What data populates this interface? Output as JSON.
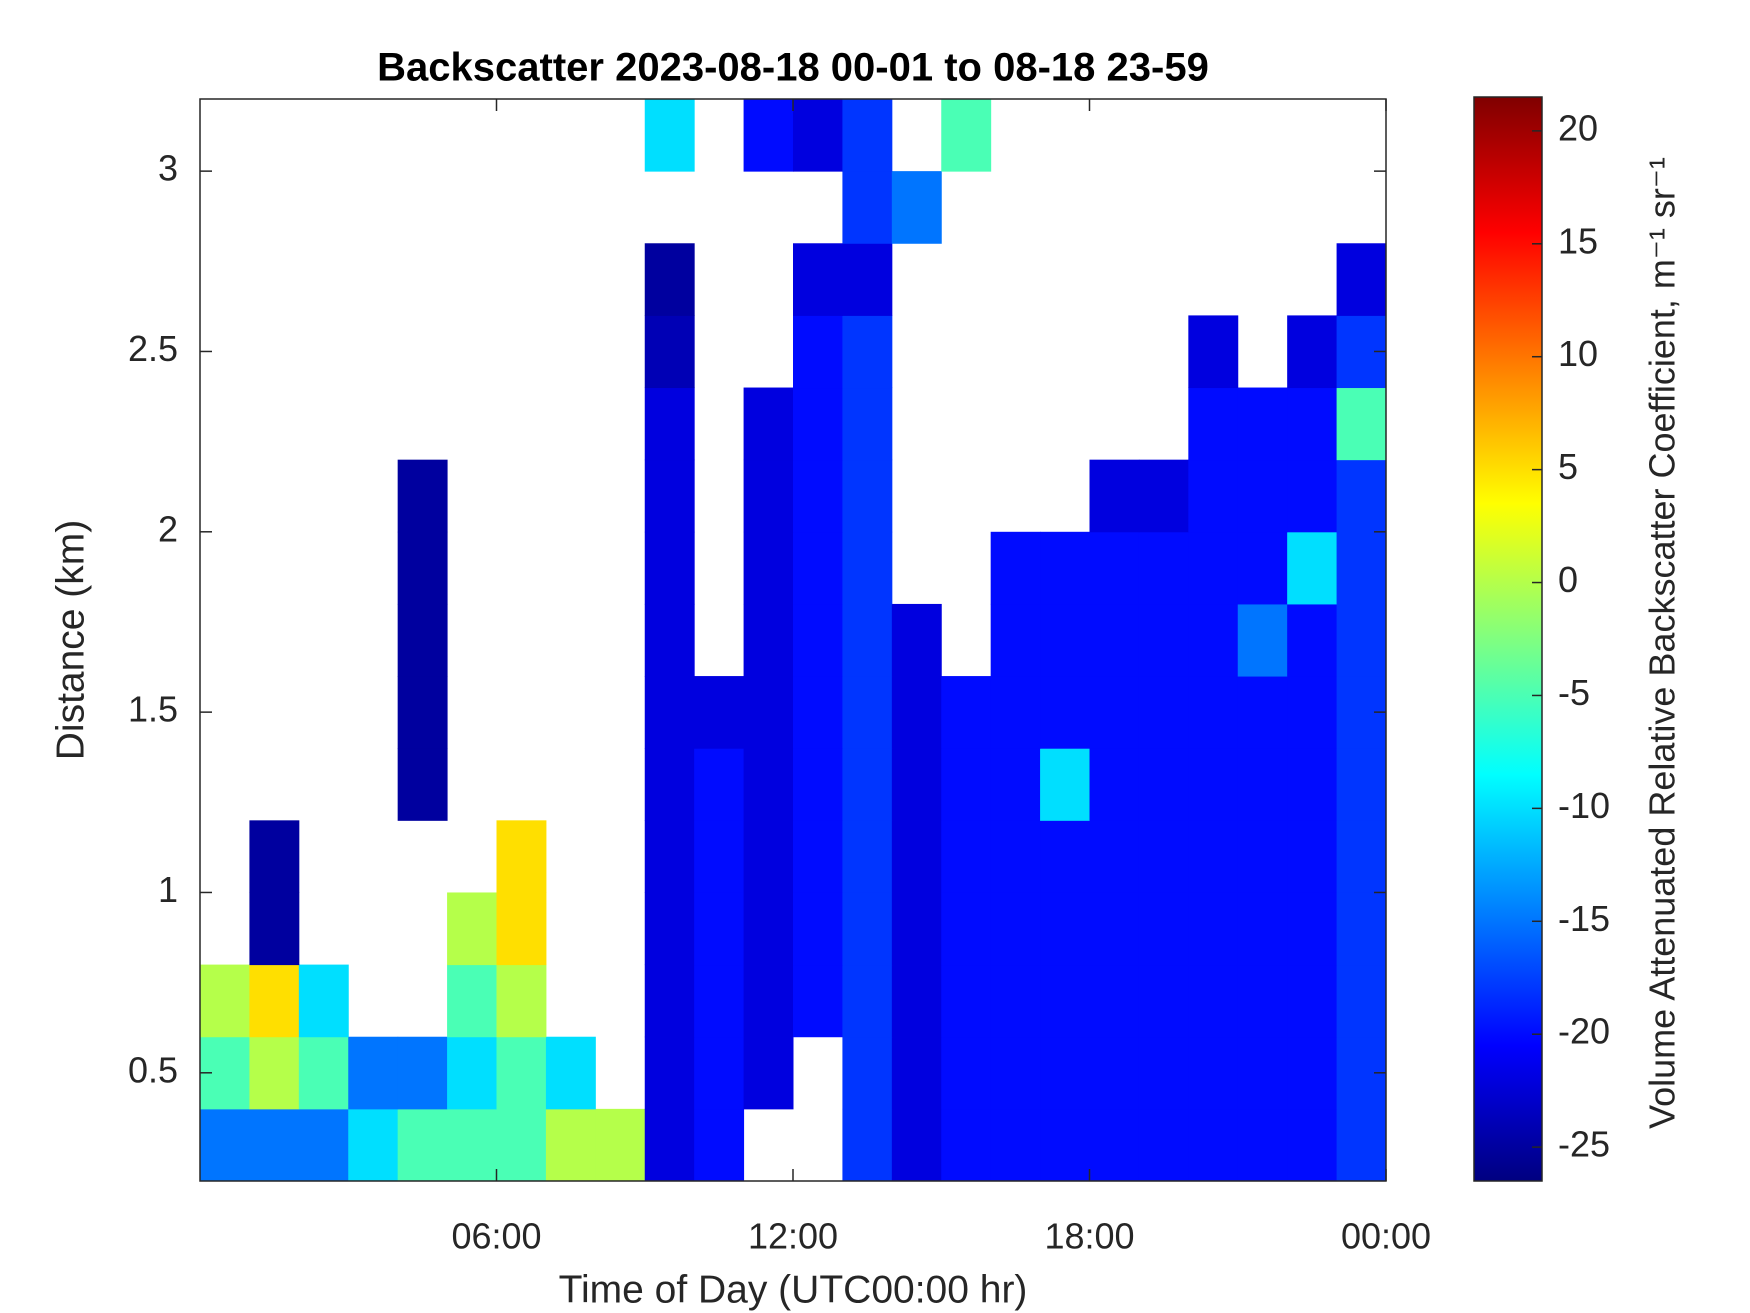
{
  "chart_data": {
    "type": "heatmap",
    "title": "Backscatter 2023-08-18 00-01 to 08-18 23-59",
    "x_label": "Time of Day (UTC00:00 hr)",
    "y_label": "Distance (km)",
    "colorbar_label": "Volume Attenuated Relative Backscatter Coefficient, m⁻¹ sr⁻¹",
    "colormap": "jet",
    "x": [
      0.5,
      1.5,
      2.5,
      3.5,
      4.5,
      5.5,
      6.5,
      7.5,
      8.5,
      9.5,
      10.5,
      11.5,
      12.5,
      13.5,
      14.5,
      15.5,
      16.5,
      17.5,
      18.5,
      19.5,
      20.5,
      21.5,
      22.5,
      23.5
    ],
    "y": [
      0.3,
      0.5,
      0.7,
      0.9,
      1.1,
      1.3,
      1.5,
      1.7,
      1.9,
      2.1,
      2.3,
      2.5,
      2.7,
      2.9,
      3.1
    ],
    "z": [
      [
        -15,
        -15,
        -15,
        -10,
        -5,
        -5,
        -5,
        0,
        0,
        -22,
        -20,
        null,
        null,
        -18,
        -22,
        -20,
        -20,
        -20,
        -20,
        -20,
        -20,
        -20,
        -20,
        -18
      ],
      [
        -5,
        0,
        -5,
        -15,
        -15,
        -10,
        -5,
        -10,
        null,
        -22,
        -20,
        -22,
        null,
        -18,
        -22,
        -20,
        -20,
        -20,
        -20,
        -20,
        -20,
        -20,
        -20,
        -18
      ],
      [
        0,
        5,
        -10,
        null,
        null,
        -5,
        0,
        null,
        null,
        -22,
        -20,
        -22,
        -20,
        -18,
        -22,
        -20,
        -20,
        -20,
        -20,
        -20,
        -20,
        -20,
        -20,
        -18
      ],
      [
        null,
        -25,
        null,
        null,
        null,
        0,
        5,
        null,
        null,
        -22,
        -20,
        -22,
        -20,
        -18,
        -22,
        -20,
        -20,
        -20,
        -20,
        -20,
        -20,
        -20,
        -20,
        -18
      ],
      [
        null,
        -25,
        null,
        null,
        null,
        null,
        5,
        null,
        null,
        -22,
        -20,
        -22,
        -20,
        -18,
        -22,
        -20,
        -20,
        -20,
        -20,
        -20,
        -20,
        -20,
        -20,
        -18
      ],
      [
        null,
        null,
        null,
        null,
        -25,
        null,
        null,
        null,
        null,
        -22,
        -20,
        -22,
        -20,
        -18,
        -22,
        -20,
        -20,
        -10,
        -20,
        -20,
        -20,
        -20,
        -20,
        -18
      ],
      [
        null,
        null,
        null,
        null,
        -25,
        null,
        null,
        null,
        null,
        -22,
        -22,
        -22,
        -20,
        -18,
        -22,
        -20,
        -20,
        -20,
        -20,
        -20,
        -20,
        -20,
        -20,
        -18
      ],
      [
        null,
        null,
        null,
        null,
        -25,
        null,
        null,
        null,
        null,
        -22,
        null,
        -22,
        -20,
        -18,
        -22,
        null,
        -20,
        -20,
        -20,
        -20,
        -20,
        -15,
        -20,
        -18
      ],
      [
        null,
        null,
        null,
        null,
        -25,
        null,
        null,
        null,
        null,
        -22,
        null,
        -22,
        -20,
        -18,
        null,
        null,
        -20,
        -20,
        -20,
        -20,
        -20,
        -20,
        -10,
        -18
      ],
      [
        null,
        null,
        null,
        null,
        -25,
        null,
        null,
        null,
        null,
        -22,
        null,
        -22,
        -20,
        -18,
        null,
        null,
        null,
        null,
        -22,
        -22,
        -20,
        -20,
        -20,
        -18
      ],
      [
        null,
        null,
        null,
        null,
        null,
        null,
        null,
        null,
        null,
        -22,
        null,
        -22,
        -20,
        -18,
        null,
        null,
        null,
        null,
        null,
        null,
        -20,
        -20,
        -20,
        -5
      ],
      [
        null,
        null,
        null,
        null,
        null,
        null,
        null,
        null,
        null,
        -24,
        null,
        null,
        -20,
        -18,
        null,
        null,
        null,
        null,
        null,
        null,
        -22,
        null,
        -22,
        -18
      ],
      [
        null,
        null,
        null,
        null,
        null,
        null,
        null,
        null,
        null,
        -25,
        null,
        null,
        -22,
        -22,
        null,
        null,
        null,
        null,
        null,
        null,
        null,
        null,
        null,
        -22
      ],
      [
        null,
        null,
        null,
        null,
        null,
        null,
        null,
        null,
        null,
        null,
        null,
        null,
        null,
        -18,
        -15,
        null,
        null,
        null,
        null,
        null,
        null,
        null,
        null,
        null
      ],
      [
        null,
        null,
        null,
        null,
        null,
        null,
        null,
        null,
        null,
        -10,
        null,
        -20,
        -22,
        -18,
        null,
        -5,
        null,
        null,
        null,
        null,
        null,
        null,
        null,
        null
      ]
    ],
    "xlim": [
      0,
      24
    ],
    "xticks": [
      {
        "value": 6,
        "label": "06:00"
      },
      {
        "value": 12,
        "label": "12:00"
      },
      {
        "value": 18,
        "label": "18:00"
      },
      {
        "value": 24,
        "label": "00:00"
      }
    ],
    "ylim": [
      0.2,
      3.2
    ],
    "yticks": [
      0.5,
      1,
      1.5,
      2,
      2.5,
      3
    ],
    "clim": [
      -26.5,
      21.5
    ],
    "cticks": [
      -25,
      -20,
      -15,
      -10,
      -5,
      0,
      5,
      10,
      15,
      20
    ]
  }
}
